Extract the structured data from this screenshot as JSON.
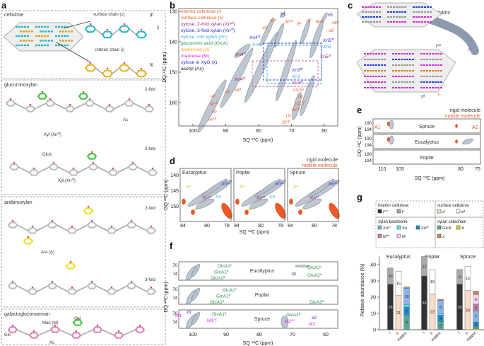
{
  "panels": {
    "a": "a",
    "b": "b",
    "c": "c",
    "d": "d",
    "e": "e",
    "f": "f",
    "g": "g"
  },
  "colors": {
    "cellulose": "#ef5a24",
    "xn2f": "#9b2a7a",
    "xn3f": "#2a2ad0",
    "xn": "#33aadd",
    "glca": "#2a8a4a",
    "arabinose": "#f5a623",
    "mannose": "#e020e0",
    "xyg": "#2222cc",
    "acetyl": "#111111",
    "contour": "#7d8896"
  },
  "a": {
    "cellulose": "cellulose",
    "surface": "surface chain (s)",
    "interior": "interior chain (i)",
    "gt": "gt",
    "tg": "tg",
    "chi": "χ",
    "glucuronoxylan": "glucuronoxylan",
    "gx_2fold": "2-fold",
    "gx_3fold": "3-fold",
    "xyl2f": {
      "t": "Xyl (Xn",
      "sup": "2f",
      "end": ")"
    },
    "xyl3f": {
      "t": "Xyl (Xn",
      "sup": "3f",
      "end": ")"
    },
    "ac1": "Ac",
    "glca": "GlcA",
    "arabinoxylan": "arabinoxylan",
    "ax_2fold": "2-fold",
    "ax_3fold": "3-fold",
    "ara": "Ara (A)",
    "galactoglucomannan": "galactoglucomannan",
    "gal": "Gal",
    "man": "Man (M)",
    "glc": "Glc",
    "ac2": "Ac"
  },
  "b": {
    "legend": [
      {
        "t": "interior cellulose (i)"
      },
      {
        "t": "surface cellulose (s)"
      },
      {
        "t": "xylose, 2-fold xylan (Xn",
        "sup": "2f",
        "end": ")"
      },
      {
        "t": "xylose, 3-fold xylan (Xn",
        "sup": "3f",
        "end": ")"
      },
      {
        "t": "xylose, mix xylan (Xn)"
      },
      {
        "t": "glucuronic acid (GlcA)"
      },
      {
        "t": "arabinose (A)"
      },
      {
        "t": "mannose (M)"
      },
      {
        "t": "xylose in XyG (x)"
      },
      {
        "t": "acetyl (Ac)"
      }
    ],
    "labels": [
      {
        "t": "x4"
      },
      {
        "t": "x5"
      },
      {
        "t": "s5",
        "sup": "g"
      },
      {
        "t": "s5",
        "sup": "f"
      },
      {
        "t": "i5",
        "sup": "a,b"
      },
      {
        "t": "i5",
        "sup": "c"
      },
      {
        "t": "i6",
        "sup": "c"
      },
      {
        "t": "i6",
        "sup": "a,b"
      },
      {
        "t": "s6",
        "sup": "g"
      },
      {
        "t": "s6",
        "sup": "f"
      },
      {
        "t": "Xn4",
        "sup": "3f"
      },
      {
        "t": "Xn4"
      },
      {
        "t": "Xn4",
        "sup": "2f"
      },
      {
        "t": "Xn5",
        "sup": "3f"
      },
      {
        "t": "Xn5"
      },
      {
        "t": "Xn5",
        "sup": "2f"
      },
      {
        "t": "Xn3",
        "sup": "3f"
      },
      {
        "t": "Xn3"
      },
      {
        "t": "Xn3",
        "sup": "2f"
      },
      {
        "t": "Xn4",
        "sup": "2f"
      },
      {
        "t": "s3,5",
        "sup": "g"
      },
      {
        "t": "i5",
        "sup": "c"
      },
      {
        "t": "s3,5",
        "sup": "f"
      },
      {
        "t": "i5",
        "sup": "a,b"
      },
      {
        "t": "i3",
        "sup": "c"
      },
      {
        "t": "i3",
        "sup": "a,b"
      },
      {
        "t": "s4",
        "sup": "f"
      },
      {
        "t": "s4",
        "sup": "g"
      },
      {
        "t": "i4",
        "sup": "c"
      },
      {
        "t": "i4",
        "sup": "a,b"
      },
      {
        "t": "i4",
        "sup": "c"
      },
      {
        "t": "i4",
        "sup": "a,b"
      }
    ],
    "xticks": [
      "100",
      "90",
      "80",
      "70",
      "60"
    ],
    "yticks": [
      "130",
      "140",
      "150",
      "160"
    ],
    "xlabel": {
      "t": "SQ ",
      "sup": "13",
      "end": "C (ppm)"
    },
    "ylabel": {
      "t": "DQ ",
      "sup": "13",
      "end": "C (ppm)"
    }
  },
  "c": {
    "matrix": "matrix",
    "iab": {
      "t": "i",
      "sup": "a,b"
    },
    "sf": {
      "t": "s",
      "sup": "f"
    },
    "sg": {
      "t": "s",
      "sup": "g"
    },
    "ic": {
      "t": "i",
      "sup": "c"
    }
  },
  "d": {
    "rigid": "rigid molecule",
    "mobile": "mobile molecule",
    "titles": [
      "Eucalyptus",
      "Poplar",
      "Spruce"
    ],
    "xticks": [
      "84",
      "80",
      "78"
    ],
    "yticks": [
      "140",
      "145",
      "150"
    ],
    "labels": [
      {
        "t": "A",
        "sup": "a"
      },
      {
        "t": "A",
        "sup": "c"
      },
      {
        "t": "Xn",
        "sup": "3f"
      },
      {
        "t": "Xn"
      },
      {
        "t": "Xn",
        "sup": "2f"
      }
    ],
    "xlabel": {
      "t": "SQ ",
      "sup": "13",
      "end": "C (ppm)"
    },
    "ylabel": {
      "t": "DQ ",
      "sup": "13",
      "end": "C (ppm)"
    }
  },
  "e": {
    "rigid": "rigid molecule",
    "mobile": "mobile molecule",
    "rows": [
      "Spruce",
      "Eucalyptus",
      "Poplar"
    ],
    "a1": "A1",
    "a2": "A2",
    "yticks": [
      "190",
      "194"
    ],
    "xticks": [
      "110",
      "105",
      "80",
      "75"
    ],
    "xlabel": {
      "t": "SQ ",
      "sup": "13",
      "end": "C (ppm)"
    },
    "ylabel": {
      "t": "DQ ",
      "sup": "13",
      "end": "C (ppm)"
    }
  },
  "f": {
    "rows": [
      "Eucalyptus",
      "Poplar",
      "Spruce"
    ],
    "euc": [
      {
        "t": "GlcA1",
        "sup": "c"
      },
      {
        "t": "GlcA1",
        "sup": "b"
      },
      {
        "t": "GlcA1",
        "sup": "a"
      },
      {
        "t": "GlcA2",
        "sup": "c"
      },
      {
        "t": "GlcA2",
        "sup": "a"
      }
    ],
    "pop": [
      {
        "t": "GlcA1",
        "sup": "c"
      },
      {
        "t": "GlcA1",
        "sup": "b"
      },
      {
        "t": "GlcA1",
        "sup": "a"
      },
      {
        "t": "GlcA2",
        "sup": "a"
      }
    ],
    "spr": [
      {
        "t": "x1"
      },
      {
        "t": "M1"
      },
      {
        "t": "GlcA1",
        "sup": "b"
      },
      {
        "t": "M1",
        "sup": "Ac"
      },
      {
        "t": "GlcA2",
        "sup": "b"
      },
      {
        "t": "M2",
        "sup": "Ac"
      },
      {
        "t": "x2"
      },
      {
        "t": "M2"
      }
    ],
    "yticks": [
      "70",
      "74"
    ],
    "xticks": [
      "100",
      "90",
      "80",
      "70",
      "60"
    ],
    "xlabel": {
      "t": "SQ ",
      "sup": "13",
      "end": "C (ppm)"
    },
    "ylabel": {
      "t": "DQ ",
      "sup": "13",
      "end": "C (ppm)"
    }
  },
  "chart_data": {
    "type": "bar",
    "stacked": true,
    "title": "",
    "ylabel": "Relative abundance (%)",
    "ylim": [
      0,
      45
    ],
    "yticks": [
      "0",
      "10",
      "20",
      "30",
      "40"
    ],
    "groups": [
      "Eucalyptus",
      "Poplar",
      "Spruce"
    ],
    "categories": [
      "i",
      "s",
      "matrix"
    ],
    "legend_groups": [
      {
        "title": "interior cellulose",
        "items": [
          {
            "key": "iab",
            "label": "i",
            "sup": "a,b",
            "color": "#333333"
          },
          {
            "key": "ic",
            "label": "i",
            "sup": "c",
            "color": "#aaaaaa"
          }
        ]
      },
      {
        "title": "surface cellulose",
        "items": [
          {
            "key": "sf",
            "label": "s",
            "sup": "f",
            "color": "#f7dcc8"
          },
          {
            "key": "sg",
            "label": "s",
            "sup": "g",
            "color": "#ffffff"
          }
        ]
      },
      {
        "title": "xylan backbone",
        "items": [
          {
            "key": "xn2f",
            "label": "Xn",
            "sup": "2f",
            "color": "#8ab4ea"
          },
          {
            "key": "xn",
            "label": "Xn",
            "sup": "",
            "color": "#5ee8ee"
          },
          {
            "key": "xn3f",
            "label": "Xn",
            "sup": "3f",
            "color": "#1d8fd6"
          },
          {
            "key": "mac",
            "label": "M",
            "sup": "Ac",
            "color": "#c77fa8"
          },
          {
            "key": "m",
            "label": "M",
            "sup": "",
            "color": "#f6d2f0"
          }
        ]
      },
      {
        "title": "xylan sidechain",
        "items": [
          {
            "key": "glca",
            "label": "GlcA",
            "sup": "",
            "color": "#5aa89a"
          },
          {
            "key": "a",
            "label": "A",
            "sup": "",
            "color": "#d8d820"
          },
          {
            "key": "x",
            "label": "x",
            "sup": "",
            "color": "#c08a5a"
          }
        ]
      }
    ],
    "series": [
      {
        "group": "Eucalyptus",
        "category": "i",
        "stack": [
          {
            "key": "iab",
            "value": 28,
            "label": "28"
          },
          {
            "key": "ic",
            "value": 10,
            "label": "10"
          }
        ]
      },
      {
        "group": "Eucalyptus",
        "category": "s",
        "stack": [
          {
            "key": "sf",
            "value": 21,
            "label": "21"
          },
          {
            "key": "sg",
            "value": 15,
            "label": "15"
          }
        ]
      },
      {
        "group": "Eucalyptus",
        "category": "matrix",
        "stack": [
          {
            "key": "glca",
            "value": 9,
            "label": "9"
          },
          {
            "key": "xn3f",
            "value": 5,
            "label": "5"
          },
          {
            "key": "xn",
            "value": 1.5,
            "label": ""
          },
          {
            "key": "xn2f",
            "value": 10,
            "label": "10"
          },
          {
            "key": "x",
            "value": 0.8,
            "label": ""
          }
        ]
      },
      {
        "group": "Poplar",
        "category": "i",
        "stack": [
          {
            "key": "iab",
            "value": 33,
            "label": "33"
          },
          {
            "key": "ic",
            "value": 12,
            "label": "12"
          }
        ]
      },
      {
        "group": "Poplar",
        "category": "s",
        "stack": [
          {
            "key": "sf",
            "value": 22,
            "label": "22"
          },
          {
            "key": "sg",
            "value": 15,
            "label": "15"
          }
        ]
      },
      {
        "group": "Poplar",
        "category": "matrix",
        "stack": [
          {
            "key": "glca",
            "value": 5,
            "label": "5"
          },
          {
            "key": "xn3f",
            "value": 4,
            "label": "4"
          },
          {
            "key": "xn",
            "value": 1,
            "label": ""
          },
          {
            "key": "xn2f",
            "value": 8,
            "label": "8"
          },
          {
            "key": "x",
            "value": 0.7,
            "label": ""
          }
        ]
      },
      {
        "group": "Spruce",
        "category": "i",
        "stack": [
          {
            "key": "iab",
            "value": 28,
            "label": "28"
          },
          {
            "key": "ic",
            "value": 9,
            "label": "9"
          }
        ]
      },
      {
        "group": "Spruce",
        "category": "s",
        "stack": [
          {
            "key": "sf",
            "value": 24,
            "label": "24"
          },
          {
            "key": "sg",
            "value": 15,
            "label": "15"
          }
        ]
      },
      {
        "group": "Spruce",
        "category": "matrix",
        "stack": [
          {
            "key": "a",
            "value": 0.7,
            "label": ""
          },
          {
            "key": "glca",
            "value": 1,
            "label": ""
          },
          {
            "key": "xn3f",
            "value": 3,
            "label": "3"
          },
          {
            "key": "xn2f",
            "value": 7,
            "label": "7"
          },
          {
            "key": "mac",
            "value": 4,
            "label": "4"
          },
          {
            "key": "m",
            "value": 6,
            "label": "6"
          },
          {
            "key": "x",
            "value": 2,
            "label": ""
          }
        ]
      }
    ]
  }
}
